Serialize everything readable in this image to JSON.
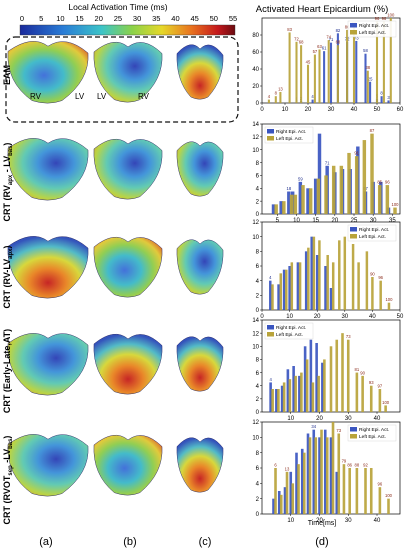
{
  "figure": {
    "colorbar_title": "Local Activation Time (ms)",
    "colorbar_ticks": [
      "0",
      "5",
      "10",
      "15",
      "20",
      "25",
      "30",
      "35",
      "40",
      "45",
      "50",
      "55"
    ],
    "right_title": "Activated Heart Epicardium (%)",
    "row_labels": [
      "EAM",
      "CRT (RVapx - LVbas)",
      "CRT (RV-LVapx)",
      "CRT (Early-Late,AT)",
      "CRT (RVOTsep-LVbas)"
    ],
    "row_label_parts": [
      {
        "main": "EAM",
        "sub": "",
        "tail": ""
      },
      {
        "main": "CRT (RV",
        "sub": "apx",
        "mid": " - LV",
        "sub2": "bas",
        "tail": ")"
      },
      {
        "main": "CRT (RV-LV",
        "sub": "apx",
        "tail": ")"
      },
      {
        "main": "CRT (Early-Late,AT)",
        "sub": "",
        "tail": ""
      },
      {
        "main": "CRT (RVOT",
        "sub": "sep",
        "mid": " -LV",
        "sub2": "bas",
        "tail": ")"
      }
    ],
    "eam_labels": [
      "RV",
      "LV",
      "LV",
      "RV"
    ],
    "panel_labels": [
      "(a)",
      "(b)",
      "(c)",
      "(d)"
    ],
    "x_axis_label": "Time[ms]",
    "colors": {
      "right": "#3a55c0",
      "left": "#b8a33a"
    }
  },
  "chart_data": [
    {
      "type": "bar",
      "row": "EAM",
      "xlim": [
        0,
        60
      ],
      "ylim": [
        0,
        100
      ],
      "xticks": [
        0,
        10,
        20,
        30,
        40,
        50,
        60
      ],
      "yticks": [
        0,
        20,
        40,
        60,
        80
      ],
      "legend": "top-right",
      "series": [
        {
          "name": "Right Epi. Act.",
          "x": [
            5,
            10,
            15,
            17,
            22,
            27,
            30,
            33,
            37,
            41,
            45,
            47,
            50,
            52,
            55
          ],
          "values": [
            0,
            0,
            1,
            2,
            4,
            61,
            71,
            82,
            72,
            73,
            58,
            25,
            5,
            8,
            3
          ],
          "labels": [
            "",
            "",
            "1",
            "2",
            "4",
            "61",
            "71",
            "82",
            "72",
            "73",
            "58",
            "25",
            "5",
            "8",
            "3"
          ]
        },
        {
          "name": "Left Epi. Act.",
          "x": [
            3,
            6,
            8,
            12,
            15,
            17,
            20,
            23,
            25,
            29,
            33,
            37,
            40,
            46,
            50,
            53,
            56
          ],
          "values": [
            4,
            8,
            13,
            83,
            72,
            68,
            45,
            57,
            63,
            74,
            68,
            86,
            90,
            38,
            96,
            96,
            100
          ],
          "labels": [
            "4",
            "8",
            "13",
            "83",
            "72",
            "68",
            "45",
            "57",
            "63",
            "74",
            "68",
            "86",
            "90",
            "38",
            "96",
            "96",
            "100"
          ]
        }
      ]
    },
    {
      "type": "bar",
      "row": "CRT (RVapx - LVbas)",
      "xlim": [
        1,
        37
      ],
      "ylim": [
        0,
        14
      ],
      "xticks": [
        5,
        10,
        15,
        20,
        25,
        30,
        35
      ],
      "yticks": [
        0,
        2,
        4,
        6,
        8,
        10,
        12,
        14
      ],
      "legend": "top-left",
      "series": [
        {
          "name": "Right Epi. Act.",
          "x": [
            4,
            6,
            8,
            9,
            11,
            13,
            15,
            16,
            18,
            20,
            22,
            24,
            26,
            28,
            30,
            32,
            34
          ],
          "values": [
            1.5,
            2.0,
            3.5,
            3.5,
            5.0,
            4.0,
            5.5,
            12.5,
            7.5,
            6.5,
            7.0,
            7.0,
            10.5,
            3.5,
            5.0,
            5.0,
            1.0
          ],
          "labels": [
            "",
            "",
            "18",
            "",
            "59",
            "",
            "",
            "",
            "71",
            "",
            "",
            "",
            "",
            "67",
            "",
            "",
            ""
          ]
        },
        {
          "name": "Left Epi. Act.",
          "x": [
            4.7,
            6.7,
            8.7,
            9.7,
            11.7,
            13.7,
            15.7,
            17.7,
            19.7,
            21.7,
            23.7,
            25.7,
            27.7,
            29.7,
            31.7,
            33.7,
            35.7
          ],
          "values": [
            1.5,
            2.0,
            3.0,
            3.0,
            4.5,
            4.0,
            5.5,
            6.0,
            7.5,
            7.5,
            9.5,
            9.0,
            11.5,
            12.5,
            4.5,
            4.5,
            1.0
          ],
          "labels": [
            "",
            "",
            "",
            "",
            "",
            "",
            "",
            "",
            "",
            "",
            "",
            "91",
            "",
            "87",
            "85",
            "96",
            "100"
          ]
        }
      ]
    },
    {
      "type": "bar",
      "row": "CRT (RV-LVapx)",
      "xlim": [
        0,
        50
      ],
      "ylim": [
        0,
        12
      ],
      "xticks": [
        0,
        10,
        20,
        30,
        40,
        50
      ],
      "yticks": [
        0,
        2,
        4,
        6,
        8,
        10,
        12
      ],
      "legend": "top-right",
      "series": [
        {
          "name": "Right Epi. Act.",
          "x": [
            3,
            6,
            8,
            10,
            13,
            16,
            18,
            20,
            23,
            25
          ],
          "values": [
            4.0,
            3.5,
            5.5,
            6.0,
            6.5,
            8.0,
            10.0,
            7.5,
            6.0,
            3.0
          ],
          "labels": [
            "4",
            "",
            "",
            "",
            "",
            "",
            "",
            "",
            "",
            ""
          ]
        },
        {
          "name": "Left Epi. Act.",
          "x": [
            3.8,
            6.8,
            8.8,
            10.8,
            13.8,
            16.8,
            18.8,
            20.8,
            23.8,
            25.8,
            28,
            30,
            33,
            35,
            38,
            40,
            43,
            46
          ],
          "values": [
            3.5,
            5.0,
            5.5,
            6.5,
            6.5,
            8.5,
            10.0,
            9.5,
            7.5,
            6.5,
            9.5,
            10.0,
            9.0,
            6.5,
            8.0,
            4.5,
            4.0,
            1.0
          ],
          "labels": [
            "",
            "",
            "",
            "",
            "",
            "",
            "",
            "",
            "",
            "",
            "",
            "",
            "",
            "",
            "",
            "90",
            "96",
            "100"
          ]
        }
      ]
    },
    {
      "type": "bar",
      "row": "CRT (Early-Late,AT)",
      "xlim": [
        0,
        48
      ],
      "ylim": [
        0,
        14
      ],
      "xticks": [
        10,
        20,
        30,
        40
      ],
      "yticks": [
        0,
        2,
        4,
        6,
        8,
        10,
        12,
        14
      ],
      "legend": "top-left",
      "series": [
        {
          "name": "Right Epi. Act.",
          "x": [
            3,
            5,
            7,
            9,
            11,
            13,
            15,
            17,
            19,
            21
          ],
          "values": [
            4.5,
            3.5,
            4.0,
            6.5,
            7.0,
            5.5,
            10.0,
            11.0,
            10.5,
            7.5
          ],
          "labels": [
            "4",
            "",
            "",
            "",
            "",
            "",
            "",
            "",
            "",
            ""
          ]
        },
        {
          "name": "Left Epi. Act.",
          "x": [
            3.7,
            5.7,
            7.7,
            9.7,
            11.7,
            13.7,
            15.7,
            17.7,
            19.7,
            21.7,
            24,
            26,
            28,
            30,
            33,
            35,
            38,
            41,
            43
          ],
          "values": [
            3.5,
            3.5,
            4.5,
            5.0,
            5.5,
            6.0,
            8.0,
            4.5,
            5.5,
            8.0,
            10.0,
            11.0,
            12.0,
            11.0,
            6.0,
            5.5,
            4.0,
            3.5,
            1.0
          ],
          "labels": [
            "",
            "",
            "",
            "",
            "",
            "",
            "",
            "",
            "",
            "",
            "",
            "",
            "",
            "73",
            "81",
            "90",
            "93",
            "97",
            "100"
          ]
        }
      ]
    },
    {
      "type": "bar",
      "row": "CRT (RVOTsep-LVbas)",
      "xlim": [
        0,
        48
      ],
      "ylim": [
        0,
        12
      ],
      "xticks": [
        10,
        20,
        30,
        40
      ],
      "yticks": [
        0,
        2,
        4,
        6,
        8,
        10,
        12
      ],
      "legend": "top-right",
      "series": [
        {
          "name": "Right Epi. Act.",
          "x": [
            4,
            6,
            8,
            10,
            12,
            14,
            16,
            18,
            20,
            22,
            24,
            26
          ],
          "values": [
            2.0,
            3.0,
            3.5,
            5.5,
            8.0,
            8.5,
            10.5,
            11.0,
            10.0,
            11.0,
            10.0,
            5.5
          ],
          "labels": [
            "",
            "",
            "",
            "",
            "",
            "",
            "",
            "34",
            "",
            "",
            "",
            ""
          ]
        },
        {
          "name": "Left Epi. Act.",
          "x": [
            4.7,
            6.7,
            8.7,
            10.7,
            12.7,
            14.7,
            16.7,
            18.7,
            20.7,
            22.7,
            24.7,
            26.7,
            28.5,
            30.5,
            33,
            36,
            38,
            41,
            44
          ],
          "values": [
            6.0,
            2.5,
            5.5,
            4.0,
            6.5,
            8.0,
            10.0,
            10.0,
            11.0,
            10.0,
            12.0,
            10.5,
            6.5,
            6.0,
            6.0,
            6.0,
            6.0,
            3.5,
            2.0
          ],
          "labels": [
            "6",
            "",
            "13",
            "",
            "",
            "",
            "",
            "",
            "",
            "",
            "",
            "73",
            "79",
            "86",
            "88",
            "92",
            "",
            "96",
            "100"
          ]
        }
      ]
    }
  ]
}
